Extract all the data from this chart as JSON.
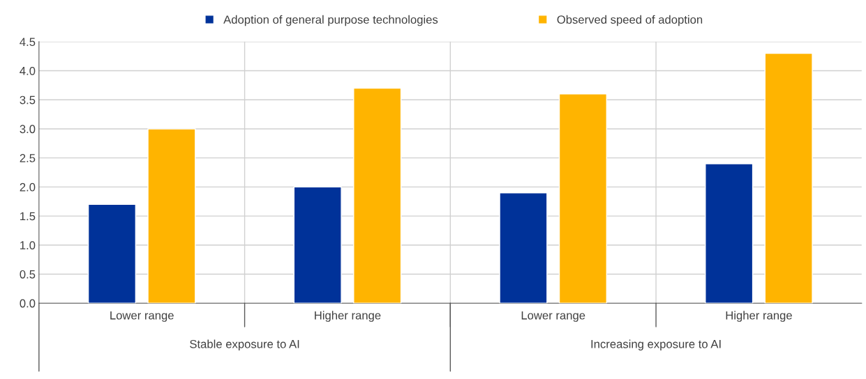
{
  "chart_data": {
    "type": "bar",
    "categories": [
      "Lower range",
      "Higher range",
      "Lower range",
      "Higher range"
    ],
    "series": [
      {
        "name": "Adoption of general purpose technologies",
        "color": "#003299",
        "values": [
          1.7,
          2.0,
          1.9,
          2.4
        ]
      },
      {
        "name": "Observed speed of adoption",
        "color": "#ffb400",
        "values": [
          3.0,
          3.7,
          3.6,
          4.3
        ]
      }
    ],
    "ylim": [
      0,
      4.5
    ],
    "yticks": [
      {
        "value": 0,
        "label": "0.0"
      },
      {
        "value": 0.5,
        "label": "0.5"
      },
      {
        "value": 1,
        "label": "1.0"
      },
      {
        "value": 1.5,
        "label": "1.5"
      },
      {
        "value": 2,
        "label": "2.0"
      },
      {
        "value": 2.5,
        "label": "2.5"
      },
      {
        "value": 3,
        "label": "3.0"
      },
      {
        "value": 3.5,
        "label": "3.5"
      },
      {
        "value": 4,
        "label": "4.0"
      },
      {
        "value": 4.5,
        "label": "4.5"
      }
    ],
    "grid": "y",
    "legend": "top",
    "annotations": [
      "Stable exposure to AI",
      "Increasing exposure to AI"
    ]
  }
}
